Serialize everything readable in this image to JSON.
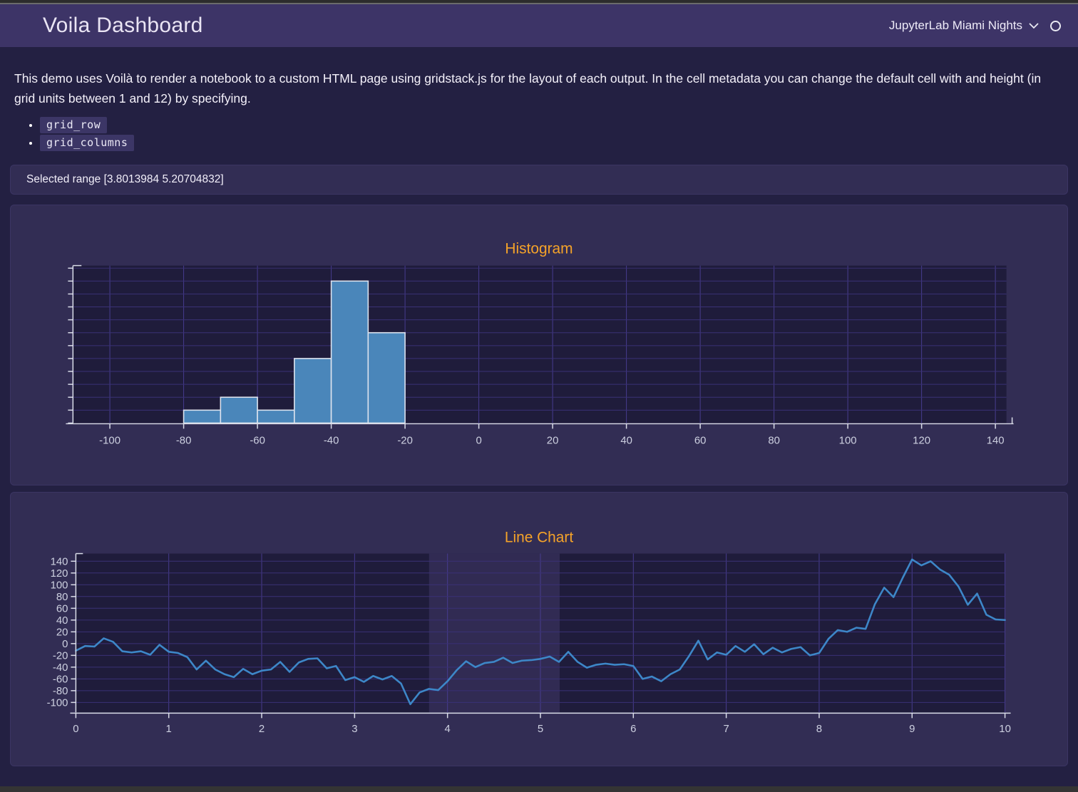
{
  "header": {
    "title": "Voila Dashboard",
    "theme_label": "JupyterLab Miami Nights"
  },
  "intro": {
    "paragraph": "This demo uses Voilà to render a notebook to a custom HTML page using gridstack.js for the layout of each output. In the cell metadata you can change the default cell with and height (in grid units between 1 and 12) by specifying.",
    "bullets": [
      "grid_row",
      "grid_columns"
    ]
  },
  "status": {
    "selected_range_label": "Selected range [3.8013984 5.20704832]"
  },
  "colors": {
    "page_bg": "#232042",
    "header_bg": "#3d3467",
    "panel_bg": "#322d54",
    "plot_bg": "#1f1c3b",
    "grid_horizontal": "#3a3176",
    "grid_vertical": "#473c8f",
    "axis": "#d9dce8",
    "accent_orange": "#f5a329",
    "bar_fill": "#4a86ba",
    "bar_stroke": "#dde3ee",
    "line_blue": "#3d87c8",
    "selection_band": "rgba(140,125,212,0.16)"
  },
  "chart_data": [
    {
      "type": "bar",
      "title": "Histogram",
      "bin_edges": [
        -80,
        -70,
        -60,
        -50,
        -40,
        -30,
        -20
      ],
      "values": [
        1,
        2,
        1,
        5,
        11,
        7
      ],
      "xlim": [
        -110,
        143
      ],
      "ylim": [
        0,
        12.2
      ],
      "x_ticks": [
        -100,
        -80,
        -60,
        -40,
        -20,
        0,
        20,
        40,
        60,
        80,
        100,
        120,
        140
      ],
      "y_grid_step": 1,
      "y_tick_labels_visible": false,
      "grid": true,
      "legend": false,
      "bar_color": "#4a86ba",
      "bar_stroke": "#dde3ee"
    },
    {
      "type": "line",
      "title": "Line Chart",
      "x_start": 0,
      "x_step": 0.1,
      "y": [
        -12,
        -4,
        -5,
        9,
        3,
        -13,
        -15,
        -13,
        -19,
        -2,
        -14,
        -16,
        -23,
        -44,
        -29,
        -44,
        -52,
        -57,
        -43,
        -52,
        -46,
        -44,
        -31,
        -48,
        -32,
        -26,
        -25,
        -42,
        -38,
        -62,
        -57,
        -65,
        -55,
        -61,
        -55,
        -68,
        -103,
        -83,
        -77,
        -79,
        -64,
        -45,
        -30,
        -40,
        -33,
        -31,
        -24,
        -33,
        -29,
        -28,
        -26,
        -22,
        -31,
        -14,
        -31,
        -41,
        -36,
        -34,
        -36,
        -35,
        -38,
        -60,
        -56,
        -64,
        -52,
        -44,
        -21,
        5,
        -27,
        -15,
        -19,
        -4,
        -14,
        -1,
        -18,
        -7,
        -15,
        -9,
        -6,
        -20,
        -16,
        8,
        23,
        20,
        27,
        25,
        67,
        95,
        79,
        112,
        143,
        133,
        140,
        126,
        117,
        97,
        66,
        85,
        49,
        41,
        40
      ],
      "xlim": [
        0,
        10
      ],
      "ylim": [
        -117,
        153
      ],
      "x_ticks": [
        0,
        1,
        2,
        3,
        4,
        5,
        6,
        7,
        8,
        9,
        10
      ],
      "y_ticks": [
        140,
        120,
        100,
        80,
        60,
        40,
        20,
        0,
        -20,
        -40,
        -60,
        -80,
        -100
      ],
      "selection": [
        3.8013984,
        5.20704832
      ],
      "grid": true,
      "legend": false,
      "line_color": "#3d87c8"
    }
  ]
}
